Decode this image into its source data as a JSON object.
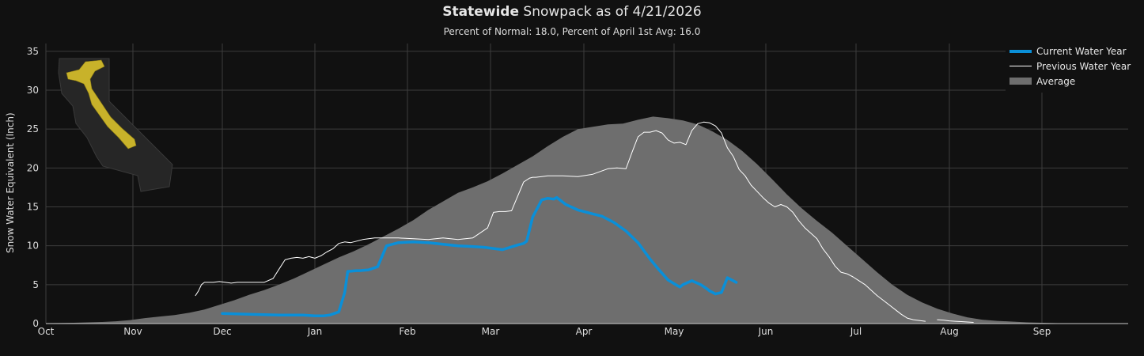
{
  "header": {
    "title_bold": "Statewide",
    "title_rest": " Snowpack as of 4/21/2026",
    "subtitle": "Percent of Normal: 18.0, Percent of April 1st Avg: 16.0"
  },
  "chart_data": {
    "type": "line",
    "ylabel": "Snow Water Equivalent (Inch)",
    "xlabel": "",
    "ylim": [
      0,
      36
    ],
    "yticks": [
      0,
      5,
      10,
      15,
      20,
      25,
      30,
      35
    ],
    "x_tick_labels": [
      "Oct",
      "Nov",
      "Dec",
      "Jan",
      "Feb",
      "Mar",
      "Apr",
      "May",
      "Jun",
      "Jul",
      "Aug",
      "Sep"
    ],
    "x_units": "days since Oct 1",
    "grid": true,
    "legend_position": "top-right",
    "series": [
      {
        "name": "Current Water Year",
        "color": "#0a8fd8",
        "style": "thick-line",
        "x": [
          61,
          70,
          80,
          88,
          92,
          95,
          97,
          100,
          102,
          103,
          106,
          107,
          110,
          113,
          116,
          120,
          125,
          130,
          135,
          140,
          145,
          149,
          151,
          155,
          160,
          162,
          163,
          165,
          168,
          170,
          172,
          173,
          176,
          180,
          184,
          188,
          192,
          196,
          200,
          204,
          207,
          210,
          213,
          214,
          215,
          218,
          221,
          223,
          224,
          226,
          228,
          230,
          233
        ],
        "y": [
          1.3,
          1.2,
          1.1,
          1.1,
          1.0,
          1.0,
          1.1,
          1.5,
          4.0,
          6.7,
          6.8,
          6.8,
          6.9,
          7.3,
          10.0,
          10.4,
          10.5,
          10.4,
          10.2,
          10.0,
          9.9,
          9.8,
          9.7,
          9.5,
          10.1,
          10.3,
          10.6,
          13.7,
          15.9,
          16.1,
          16.0,
          16.2,
          15.3,
          14.6,
          14.2,
          13.8,
          13.0,
          11.9,
          10.4,
          8.3,
          6.9,
          5.6,
          4.9,
          4.7,
          5.0,
          5.5,
          5.0,
          4.5,
          4.2,
          3.8,
          4.0,
          5.9,
          5.3
        ]
      },
      {
        "name": "Previous Water Year",
        "color": "#ffffff",
        "style": "thin-line",
        "x": [
          52,
          53,
          54,
          55,
          56,
          58,
          60,
          62,
          64,
          66,
          70,
          75,
          78,
          80,
          82,
          84,
          86,
          88,
          90,
          92,
          94,
          96,
          98,
          100,
          102,
          104,
          106,
          108,
          110,
          112,
          115,
          120,
          125,
          130,
          135,
          140,
          145,
          150,
          152,
          154,
          156,
          158,
          162,
          164,
          165,
          166,
          168,
          170,
          175,
          180,
          185,
          190,
          193,
          196,
          198,
          200,
          202,
          204,
          206,
          208,
          210,
          212,
          214,
          216,
          218,
          220,
          222,
          224,
          226,
          228,
          230,
          232,
          234,
          236,
          238,
          240,
          242,
          244,
          246,
          248,
          250,
          252,
          254,
          256,
          258,
          260,
          262,
          264,
          266,
          268,
          270,
          272,
          274,
          276,
          278,
          280,
          282,
          284,
          286,
          288,
          290,
          292,
          294,
          296,
          298,
          300,
          302,
          304,
          306,
          308,
          310,
          312
        ],
        "y": [
          3.6,
          4.2,
          5.0,
          5.3,
          5.3,
          5.3,
          5.4,
          5.3,
          5.2,
          5.3,
          5.3,
          5.3,
          5.8,
          7.0,
          8.2,
          8.4,
          8.5,
          8.4,
          8.6,
          8.4,
          8.7,
          9.2,
          9.6,
          10.3,
          10.5,
          10.4,
          10.6,
          10.8,
          10.9,
          11.0,
          11.0,
          11.0,
          10.9,
          10.8,
          11.0,
          10.8,
          11.0,
          12.3,
          14.3,
          14.4,
          14.4,
          14.5,
          18.2,
          18.7,
          18.8,
          18.8,
          18.9,
          19.0,
          19.0,
          18.9,
          19.2,
          19.9,
          20.0,
          19.9,
          22.0,
          24.0,
          24.6,
          24.6,
          24.8,
          24.5,
          23.6,
          23.2,
          23.3,
          23.0,
          24.8,
          25.7,
          25.9,
          25.8,
          25.4,
          24.5,
          22.6,
          21.5,
          19.8,
          19.0,
          17.8,
          17.0,
          16.2,
          15.5,
          15.0,
          15.3,
          15.0,
          14.3,
          13.2,
          12.3,
          11.6,
          10.9,
          9.6,
          8.6,
          7.4,
          6.6,
          6.4,
          6.0,
          5.5,
          5.0,
          4.3,
          3.6,
          3.0,
          2.4,
          1.8,
          1.2,
          0.7,
          0.5,
          0.4,
          0.3,
          null,
          0.5,
          0.45,
          0.35,
          0.3,
          0.25,
          0.2,
          0.15
        ]
      },
      {
        "name": "Average",
        "color": "#6e6e6e",
        "style": "filled-area",
        "x": [
          0,
          10,
          20,
          25,
          30,
          35,
          40,
          45,
          50,
          55,
          60,
          65,
          70,
          75,
          80,
          85,
          90,
          95,
          100,
          105,
          110,
          115,
          120,
          125,
          130,
          135,
          140,
          145,
          150,
          155,
          160,
          165,
          170,
          175,
          180,
          185,
          190,
          195,
          200,
          205,
          210,
          215,
          220,
          225,
          230,
          235,
          240,
          245,
          250,
          255,
          260,
          265,
          270,
          275,
          280,
          285,
          290,
          295,
          300,
          305,
          310,
          315,
          320,
          325,
          330,
          340,
          350,
          360,
          370,
          380,
          390,
          400,
          410,
          420,
          430,
          440,
          450,
          460,
          470,
          480,
          490,
          500,
          510,
          520,
          530,
          540,
          550,
          560,
          570,
          580,
          590,
          600,
          610,
          620,
          630,
          640,
          650,
          660,
          670,
          680,
          690,
          700
        ],
        "y": [
          0.05,
          0.1,
          0.2,
          0.3,
          0.45,
          0.7,
          0.9,
          1.1,
          1.4,
          1.8,
          2.4,
          3.0,
          3.7,
          4.3,
          5.0,
          5.8,
          6.7,
          7.6,
          8.5,
          9.3,
          10.2,
          11.2,
          12.2,
          13.3,
          14.6,
          15.7,
          16.8,
          17.5,
          18.3,
          19.3,
          20.4,
          21.5,
          22.8,
          24.0,
          25.0,
          25.3,
          25.6,
          25.7,
          26.2,
          26.6,
          26.4,
          26.1,
          25.6,
          24.7,
          23.6,
          22.2,
          20.5,
          18.6,
          16.6,
          14.8,
          13.2,
          11.7,
          10.0,
          8.3,
          6.6,
          5.0,
          3.7,
          2.7,
          1.9,
          1.3,
          0.8,
          0.5,
          0.35,
          0.25,
          0.15,
          0.05,
          0.02,
          0.01,
          0.0,
          0.0,
          0.0,
          0.0,
          0.0,
          0.0,
          0.0,
          0.0,
          0.0,
          0.0,
          0.0,
          0.0,
          0.0,
          0.0,
          0.0,
          0.0,
          0.0,
          0.0,
          0.0,
          0.0,
          0.0,
          0.0,
          0.0,
          0.0,
          0.0,
          0.0,
          0.0,
          0.0,
          0.0,
          0.0,
          0.0,
          0.0,
          0.0,
          0.0
        ]
      }
    ]
  },
  "legend": {
    "items": [
      {
        "label": "Current Water Year",
        "color": "#0a8fd8"
      },
      {
        "label": "Previous Water Year",
        "color": "#ffffff"
      },
      {
        "label": "Average",
        "color": "#6e6e6e"
      }
    ]
  },
  "colors": {
    "background": "#111111",
    "grid": "#3d3d3d",
    "average_fill": "#6e6e6e",
    "current": "#0a8fd8",
    "previous": "#ffffff",
    "map_land": "#2a2a2a",
    "map_snow": "#c8b22a"
  },
  "inset_map": {
    "icon": "california-map-icon"
  }
}
